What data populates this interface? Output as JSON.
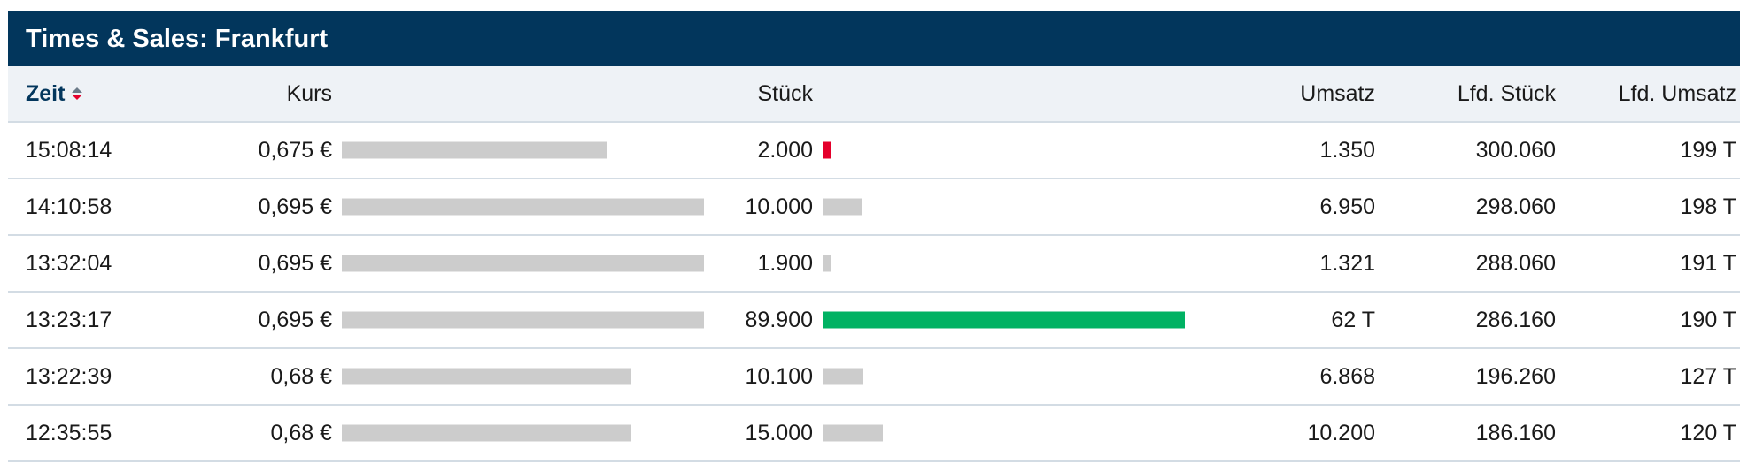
{
  "panel": {
    "title": "Times & Sales: Frankfurt"
  },
  "columns": {
    "zeit": "Zeit",
    "kurs": "Kurs",
    "stueck": "Stück",
    "umsatz": "Umsatz",
    "lfd_stueck": "Lfd. Stück",
    "lfd_umsatz": "Lfd. Umsatz"
  },
  "sort_icon": "sort-desc-icon",
  "colors": {
    "header_bg": "#02365c",
    "bar_neutral": "#cccccc",
    "bar_up": "#00b263",
    "bar_down": "#e4002b"
  },
  "rows": [
    {
      "zeit": "15:08:14",
      "kurs": "0,675 €",
      "stueck": "2.000",
      "umsatz": "1.350",
      "lfd_stueck": "300.060",
      "lfd_umsatz": "199 T",
      "kurs_bar": 0.73,
      "vol_bar": 0.022,
      "vol_color": "down"
    },
    {
      "zeit": "14:10:58",
      "kurs": "0,695 €",
      "stueck": "10.000",
      "umsatz": "6.950",
      "lfd_stueck": "298.060",
      "lfd_umsatz": "198 T",
      "kurs_bar": 1.0,
      "vol_bar": 0.111,
      "vol_color": "neutral"
    },
    {
      "zeit": "13:32:04",
      "kurs": "0,695 €",
      "stueck": "1.900",
      "umsatz": "1.321",
      "lfd_stueck": "288.060",
      "lfd_umsatz": "191 T",
      "kurs_bar": 1.0,
      "vol_bar": 0.021,
      "vol_color": "neutral"
    },
    {
      "zeit": "13:23:17",
      "kurs": "0,695 €",
      "stueck": "89.900",
      "umsatz": "62 T",
      "lfd_stueck": "286.160",
      "lfd_umsatz": "190 T",
      "kurs_bar": 1.0,
      "vol_bar": 1.0,
      "vol_color": "up"
    },
    {
      "zeit": "13:22:39",
      "kurs": "0,68 €",
      "stueck": "10.100",
      "umsatz": "6.868",
      "lfd_stueck": "196.260",
      "lfd_umsatz": "127 T",
      "kurs_bar": 0.8,
      "vol_bar": 0.112,
      "vol_color": "neutral"
    },
    {
      "zeit": "12:35:55",
      "kurs": "0,68 €",
      "stueck": "15.000",
      "umsatz": "10.200",
      "lfd_stueck": "186.160",
      "lfd_umsatz": "120 T",
      "kurs_bar": 0.8,
      "vol_bar": 0.167,
      "vol_color": "neutral"
    }
  ]
}
